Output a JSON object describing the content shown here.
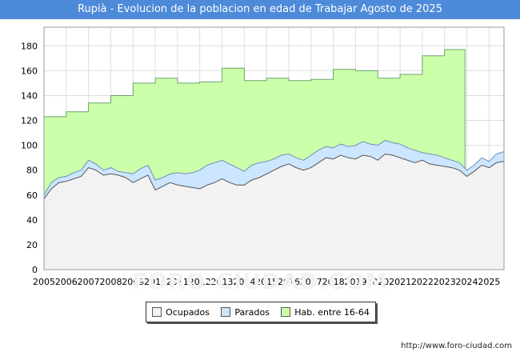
{
  "chart_data": {
    "type": "area",
    "title": "Rupià - Evolucion de la poblacion en edad de Trabajar Agosto de 2025",
    "xlabel": "",
    "ylabel": "",
    "ylim": [
      0,
      195
    ],
    "xlim": [
      2005,
      2025.67
    ],
    "yticks": [
      0,
      20,
      40,
      60,
      80,
      100,
      120,
      140,
      160,
      180
    ],
    "xticks": [
      2005,
      2006,
      2007,
      2008,
      2009,
      2010,
      2011,
      2012,
      2013,
      2014,
      2015,
      2016,
      2017,
      2018,
      2019,
      2020,
      2021,
      2022,
      2023,
      2024,
      2025
    ],
    "grid": true,
    "legend_position": "bottom",
    "series": [
      {
        "name": "Hab. entre 16-64",
        "color": "#ccffaa",
        "stroke": "#6aa36a",
        "step": true,
        "x": [
          2005,
          2006,
          2007,
          2008,
          2009,
          2010,
          2011,
          2012,
          2013,
          2014,
          2015,
          2016,
          2017,
          2018,
          2019,
          2020,
          2021,
          2022,
          2023,
          2023.92
        ],
        "values": [
          123,
          127,
          134,
          140,
          150,
          154,
          150,
          151,
          162,
          152,
          154,
          152,
          153,
          161,
          160,
          154,
          157,
          172,
          177,
          177
        ]
      },
      {
        "name": "Parados",
        "color": "#cce6ff",
        "stroke": "#6f8fb8",
        "x": [
          2005,
          2005.33,
          2005.67,
          2006,
          2006.33,
          2006.67,
          2007,
          2007.33,
          2007.67,
          2008,
          2008.33,
          2008.67,
          2009,
          2009.33,
          2009.67,
          2010,
          2010.33,
          2010.67,
          2011,
          2011.33,
          2011.67,
          2012,
          2012.33,
          2012.67,
          2013,
          2013.33,
          2013.67,
          2014,
          2014.33,
          2014.67,
          2015,
          2015.33,
          2015.67,
          2016,
          2016.33,
          2016.67,
          2017,
          2017.33,
          2017.67,
          2018,
          2018.33,
          2018.67,
          2019,
          2019.33,
          2019.67,
          2020,
          2020.33,
          2020.67,
          2021,
          2021.33,
          2021.67,
          2022,
          2022.33,
          2022.67,
          2023,
          2023.33,
          2023.67,
          2024,
          2024.33,
          2024.67,
          2025,
          2025.33,
          2025.67
        ],
        "values": [
          60,
          70,
          74,
          75,
          78,
          80,
          88,
          85,
          80,
          82,
          79,
          78,
          77,
          81,
          84,
          72,
          74,
          77,
          78,
          77,
          78,
          80,
          84,
          86,
          88,
          85,
          82,
          79,
          84,
          86,
          87,
          89,
          92,
          93,
          90,
          88,
          92,
          96,
          99,
          98,
          101,
          99,
          100,
          103,
          101,
          100,
          104,
          102,
          101,
          98,
          96,
          94,
          93,
          92,
          90,
          88,
          86,
          80,
          84,
          90,
          87,
          93,
          95
        ]
      },
      {
        "name": "Ocupados",
        "color": "#f2f2f2",
        "stroke": "#555555",
        "x": [
          2005,
          2005.33,
          2005.67,
          2006,
          2006.33,
          2006.67,
          2007,
          2007.33,
          2007.67,
          2008,
          2008.33,
          2008.67,
          2009,
          2009.33,
          2009.67,
          2010,
          2010.33,
          2010.67,
          2011,
          2011.33,
          2011.67,
          2012,
          2012.33,
          2012.67,
          2013,
          2013.33,
          2013.67,
          2014,
          2014.33,
          2014.67,
          2015,
          2015.33,
          2015.67,
          2016,
          2016.33,
          2016.67,
          2017,
          2017.33,
          2017.67,
          2018,
          2018.33,
          2018.67,
          2019,
          2019.33,
          2019.67,
          2020,
          2020.33,
          2020.67,
          2021,
          2021.33,
          2021.67,
          2022,
          2022.33,
          2022.67,
          2023,
          2023.33,
          2023.67,
          2024,
          2024.33,
          2024.67,
          2025,
          2025.33,
          2025.67
        ],
        "values": [
          57,
          65,
          70,
          71,
          73,
          75,
          82,
          80,
          76,
          77,
          76,
          74,
          70,
          73,
          76,
          64,
          67,
          70,
          68,
          67,
          66,
          65,
          68,
          70,
          73,
          70,
          68,
          68,
          72,
          74,
          77,
          80,
          83,
          85,
          82,
          80,
          82,
          86,
          90,
          89,
          92,
          90,
          89,
          92,
          91,
          88,
          93,
          92,
          90,
          88,
          86,
          88,
          85,
          84,
          83,
          82,
          80,
          75,
          79,
          84,
          82,
          86,
          87
        ]
      }
    ]
  },
  "legend": {
    "items": [
      {
        "label": "Ocupados",
        "color": "#f2f2f2"
      },
      {
        "label": "Parados",
        "color": "#cce6ff"
      },
      {
        "label": "Hab. entre 16-64",
        "color": "#ccffaa"
      }
    ]
  },
  "source": "http://www.foro-ciudad.com",
  "watermark": "FORO-CIUDAD.COM"
}
